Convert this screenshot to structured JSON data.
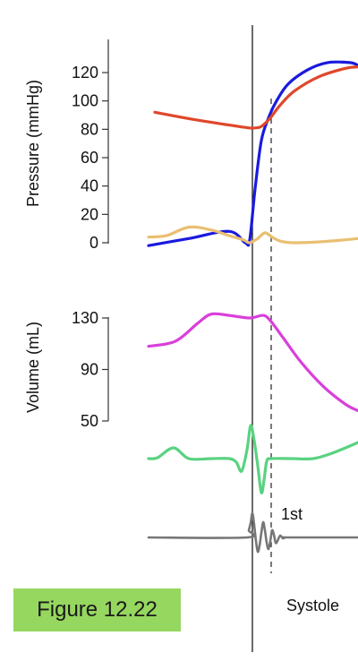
{
  "figure_label": "Figure 12.22",
  "phase_label": "Systole",
  "sound_label": "1st",
  "chart_data": [
    {
      "type": "line",
      "ylabel": "Pressure (mmHg)",
      "yticks": [
        120,
        100,
        80,
        60,
        40,
        20,
        0
      ],
      "ylim": [
        0,
        120
      ],
      "grid": false,
      "series": [
        {
          "color": "#1a1adf",
          "x": [
            0,
            45,
            90,
            108,
            113,
            119,
            126,
            134,
            143,
            156,
            178,
            200,
            225,
            234
          ],
          "y": [
            -2,
            3,
            8,
            0,
            2,
            38,
            72,
            88,
            100,
            112,
            122,
            127,
            127,
            125
          ]
        },
        {
          "color": "#e0472a",
          "x": [
            7,
            50,
            90,
            112,
            119,
            126,
            136,
            147,
            163,
            190,
            220,
            234
          ],
          "y": [
            92,
            87,
            83,
            81,
            81,
            82,
            88,
            97,
            107,
            117,
            123,
            124
          ]
        },
        {
          "color": "#e9bf72",
          "x": [
            0,
            20,
            45,
            70,
            90,
            106,
            113,
            122,
            130,
            138,
            148,
            165,
            200,
            234
          ],
          "y": [
            4,
            5,
            11,
            9,
            5,
            2,
            0,
            3,
            7,
            4,
            1,
            0,
            1,
            3
          ]
        }
      ]
    },
    {
      "type": "line",
      "ylabel": "Volume (mL)",
      "yticks": [
        130,
        90,
        50
      ],
      "ylim": [
        50,
        130
      ],
      "grid": false,
      "series": [
        {
          "color": "#d93fdb",
          "x": [
            0,
            30,
            55,
            70,
            90,
            113,
            128,
            136,
            150,
            170,
            195,
            220,
            234
          ],
          "y": [
            108,
            112,
            126,
            133,
            132,
            130,
            132,
            128,
            115,
            96,
            77,
            63,
            58
          ]
        }
      ]
    },
    {
      "type": "line",
      "ylabel": "",
      "series": [
        {
          "color": "#5ad281",
          "x": [
            0,
            10,
            28,
            45,
            70,
            90,
            98,
            104,
            110,
            114,
            118,
            122,
            126,
            129,
            132,
            137,
            160,
            184,
            205,
            234
          ],
          "y": [
            0,
            1,
            12,
            0,
            0,
            0,
            -4,
            -14,
            10,
            37,
            20,
            -8,
            -38,
            -24,
            -3,
            0,
            0,
            0,
            6,
            18
          ]
        },
        {
          "color": "#777777",
          "x": [
            0,
            110,
            112,
            114,
            116,
            118,
            120,
            122,
            124,
            126,
            128,
            130,
            132,
            134,
            136,
            138,
            140,
            142,
            144,
            147,
            150,
            153,
            156,
            234
          ],
          "y": [
            0,
            0,
            8,
            16,
            27,
            14,
            -4,
            -16,
            -9,
            5,
            17,
            8,
            -6,
            -13,
            -4,
            8,
            3,
            -6,
            -4,
            2,
            -1,
            0,
            0,
            0
          ]
        }
      ]
    }
  ]
}
